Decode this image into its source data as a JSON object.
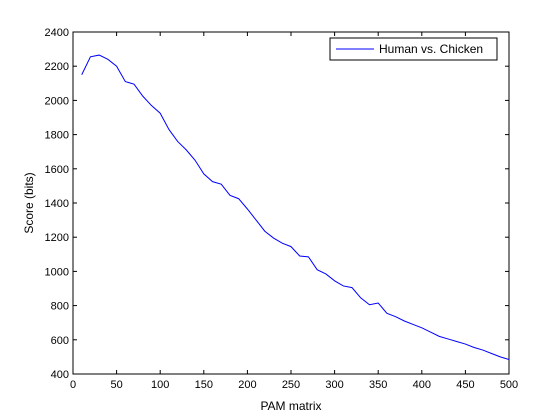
{
  "chart_data": {
    "type": "line",
    "title": "",
    "xlabel": "PAM matrix",
    "ylabel": "Score (bits)",
    "xlim": [
      0,
      500
    ],
    "ylim": [
      400,
      2400
    ],
    "xticks": [
      "0",
      "50",
      "100",
      "150",
      "200",
      "250",
      "300",
      "350",
      "400",
      "450",
      "500"
    ],
    "yticks": [
      "400",
      "600",
      "800",
      "1000",
      "1200",
      "1400",
      "1600",
      "1800",
      "2000",
      "2200",
      "2400"
    ],
    "grid": false,
    "legend_position": "top-right",
    "line_color": "#0000ff",
    "series": [
      {
        "name": "Human vs. Chicken",
        "x": [
          10,
          20,
          30,
          40,
          50,
          60,
          70,
          80,
          90,
          100,
          110,
          120,
          130,
          140,
          150,
          160,
          170,
          180,
          190,
          200,
          210,
          220,
          230,
          240,
          250,
          260,
          270,
          280,
          290,
          300,
          310,
          320,
          330,
          340,
          350,
          360,
          370,
          380,
          390,
          400,
          410,
          420,
          430,
          440,
          450,
          460,
          470,
          480,
          490,
          500
        ],
        "y": [
          2150,
          2255,
          2265,
          2240,
          2200,
          2110,
          2095,
          2025,
          1970,
          1925,
          1830,
          1760,
          1710,
          1650,
          1570,
          1525,
          1510,
          1445,
          1425,
          1365,
          1300,
          1235,
          1195,
          1165,
          1145,
          1090,
          1085,
          1010,
          985,
          945,
          915,
          905,
          845,
          805,
          815,
          755,
          735,
          710,
          690,
          670,
          645,
          620,
          605,
          590,
          575,
          555,
          540,
          520,
          500,
          485
        ]
      }
    ]
  }
}
